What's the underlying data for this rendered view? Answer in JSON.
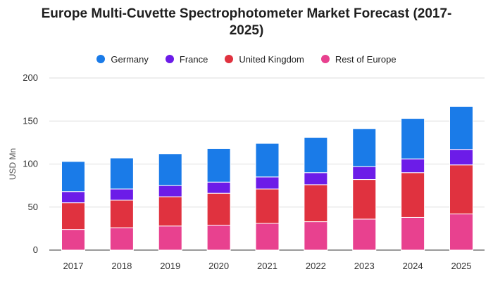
{
  "chart_data": {
    "type": "bar",
    "stacked": true,
    "title": "Europe Multi-Cuvette Spectrophotometer Market Forecast (2017-2025)",
    "title_lines": [
      "Europe Multi-Cuvette Spectrophotometer Market Forecast (2017-",
      "2025)"
    ],
    "ylabel": "USD Mn",
    "xlabel": "",
    "ylim": [
      0,
      200
    ],
    "yticks": [
      0,
      50,
      100,
      150,
      200
    ],
    "grid": true,
    "legend_position": "top",
    "categories": [
      "2017",
      "2018",
      "2019",
      "2020",
      "2021",
      "2022",
      "2023",
      "2024",
      "2025"
    ],
    "series": [
      {
        "name": "Rest of Europe",
        "color": "#e8418f",
        "values": [
          24,
          26,
          28,
          29,
          31,
          33,
          36,
          38,
          42
        ]
      },
      {
        "name": "United Kingdom",
        "color": "#e0323f",
        "values": [
          31,
          32,
          34,
          37,
          40,
          43,
          46,
          52,
          57
        ]
      },
      {
        "name": "France",
        "color": "#6c1ce8",
        "values": [
          13,
          13,
          13,
          13,
          14,
          14,
          15,
          16,
          18
        ]
      },
      {
        "name": "Germany",
        "color": "#1a7be8",
        "values": [
          35,
          36,
          37,
          39,
          39,
          41,
          44,
          47,
          50
        ]
      }
    ],
    "legend_order": [
      "Germany",
      "France",
      "United Kingdom",
      "Rest of Europe"
    ]
  }
}
